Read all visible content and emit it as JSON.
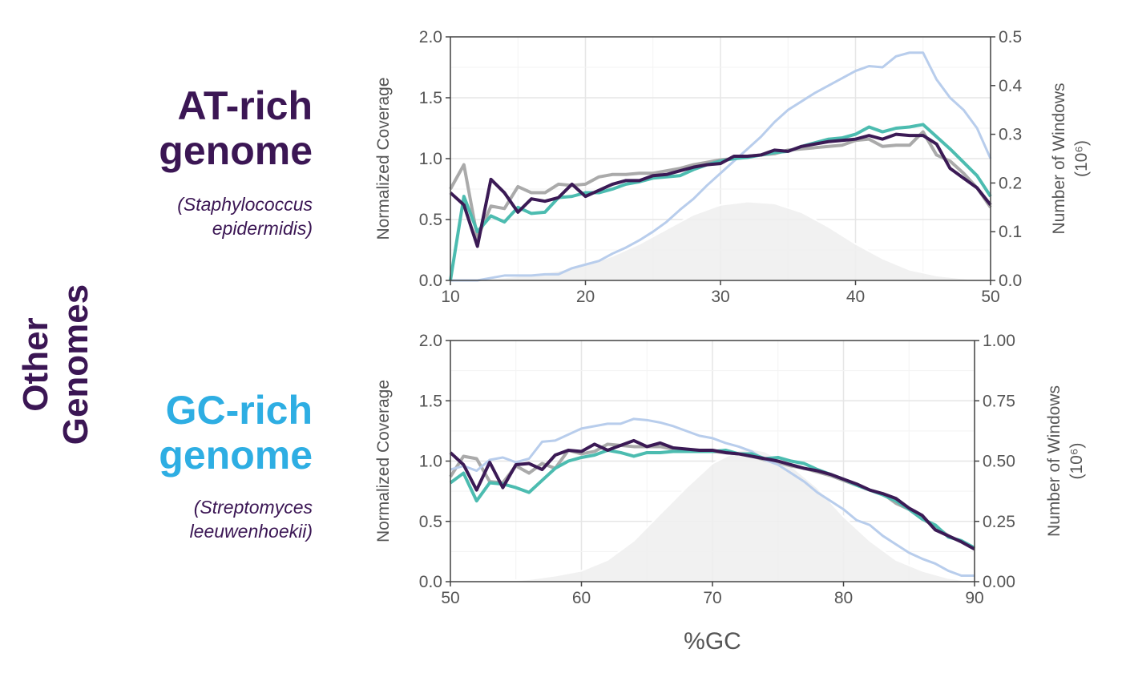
{
  "labels": {
    "side_title": "Other Genomes",
    "at_title_1": "AT-rich",
    "at_title_2": "genome",
    "at_species_1": "(Staphylococcus",
    "at_species_2": "epidermidis)",
    "gc_title_1": "GC-rich",
    "gc_title_2": "genome",
    "gc_species_1": "(Streptomyces",
    "gc_species_2": "leeuwenhoekii)",
    "at_color": "#3b1654",
    "gc_color": "#2eaee3"
  },
  "chart_data": [
    {
      "type": "line",
      "xlabel": "",
      "ylabel": "Normalized Coverage",
      "y2label": "Number of Windows",
      "y2label_unit": "(10⁶)",
      "xlim": [
        10,
        50
      ],
      "ylim": [
        0,
        2.0
      ],
      "y2lim": [
        0,
        0.5
      ],
      "xticks": [
        "10",
        "20",
        "30",
        "40",
        "50"
      ],
      "yticks": [
        "0.0",
        "0.5",
        "1.0",
        "1.5",
        "2.0"
      ],
      "y2ticks": [
        "0.0",
        "0.1",
        "0.2",
        "0.3",
        "0.4",
        "0.5"
      ],
      "grid": true,
      "x": [
        10,
        11,
        12,
        13,
        14,
        15,
        16,
        17,
        18,
        19,
        20,
        21,
        22,
        23,
        24,
        25,
        26,
        27,
        28,
        29,
        30,
        31,
        32,
        33,
        34,
        35,
        36,
        37,
        38,
        39,
        40,
        41,
        42,
        43,
        44,
        45,
        46,
        47,
        48,
        49,
        50
      ],
      "series": [
        {
          "color": "#aaaaaa",
          "values": [
            0.75,
            0.95,
            0.35,
            0.61,
            0.59,
            0.77,
            0.72,
            0.72,
            0.79,
            0.78,
            0.79,
            0.85,
            0.87,
            0.87,
            0.88,
            0.88,
            0.9,
            0.92,
            0.95,
            0.97,
            0.99,
            1.0,
            1.02,
            1.03,
            1.04,
            1.07,
            1.08,
            1.09,
            1.1,
            1.11,
            1.15,
            1.16,
            1.1,
            1.11,
            1.11,
            1.22,
            1.03,
            0.98,
            0.88,
            0.76,
            0.6
          ]
        },
        {
          "color": "#b8cdec",
          "values": [
            0,
            0,
            0,
            0.02,
            0.04,
            0.04,
            0.04,
            0.05,
            0.05,
            0.1,
            0.13,
            0.16,
            0.22,
            0.27,
            0.33,
            0.4,
            0.48,
            0.58,
            0.67,
            0.78,
            0.88,
            0.98,
            1.08,
            1.18,
            1.3,
            1.4,
            1.47,
            1.54,
            1.6,
            1.66,
            1.72,
            1.76,
            1.75,
            1.84,
            1.87,
            1.87,
            1.65,
            1.5,
            1.4,
            1.25,
            1.0
          ]
        },
        {
          "color": "#4cbcb0",
          "values": [
            0.0,
            0.69,
            0.4,
            0.53,
            0.48,
            0.6,
            0.55,
            0.56,
            0.68,
            0.69,
            0.72,
            0.72,
            0.75,
            0.79,
            0.81,
            0.84,
            0.85,
            0.86,
            0.91,
            0.95,
            0.98,
            1.0,
            1.01,
            1.03,
            1.05,
            1.06,
            1.1,
            1.13,
            1.16,
            1.17,
            1.2,
            1.26,
            1.22,
            1.25,
            1.26,
            1.28,
            1.18,
            1.08,
            0.97,
            0.86,
            0.69
          ]
        },
        {
          "color": "#3b1a55",
          "values": [
            0.72,
            0.62,
            0.28,
            0.83,
            0.72,
            0.56,
            0.67,
            0.65,
            0.68,
            0.79,
            0.69,
            0.74,
            0.79,
            0.82,
            0.82,
            0.86,
            0.87,
            0.9,
            0.93,
            0.95,
            0.96,
            1.02,
            1.02,
            1.03,
            1.07,
            1.06,
            1.1,
            1.12,
            1.14,
            1.15,
            1.16,
            1.19,
            1.16,
            1.2,
            1.19,
            1.19,
            1.12,
            0.92,
            0.84,
            0.76,
            0.62
          ]
        }
      ],
      "windows": {
        "color": "#efefef",
        "x": [
          10,
          12,
          14,
          16,
          18,
          20,
          22,
          24,
          26,
          28,
          30,
          32,
          34,
          36,
          38,
          40,
          42,
          44,
          46,
          48,
          50
        ],
        "values": [
          0,
          0.003,
          0.006,
          0.012,
          0.02,
          0.032,
          0.05,
          0.075,
          0.105,
          0.135,
          0.155,
          0.162,
          0.158,
          0.14,
          0.11,
          0.075,
          0.045,
          0.022,
          0.01,
          0.004,
          0
        ]
      }
    },
    {
      "type": "line",
      "xlabel": "%GC",
      "ylabel": "Normalized Coverage",
      "y2label": "Number of Windows",
      "y2label_unit": "(10⁶)",
      "xlim": [
        50,
        90
      ],
      "ylim": [
        0,
        2.0
      ],
      "y2lim": [
        0,
        1.0
      ],
      "xticks": [
        "50",
        "60",
        "70",
        "80",
        "90"
      ],
      "yticks": [
        "0.0",
        "0.5",
        "1.0",
        "1.5",
        "2.0"
      ],
      "y2ticks": [
        "0.00",
        "0.25",
        "0.50",
        "0.75",
        "1.00"
      ],
      "grid": true,
      "x": [
        50,
        51,
        52,
        53,
        54,
        55,
        56,
        57,
        58,
        59,
        60,
        61,
        62,
        63,
        64,
        65,
        66,
        67,
        68,
        69,
        70,
        71,
        72,
        73,
        74,
        75,
        76,
        77,
        78,
        79,
        80,
        81,
        82,
        83,
        84,
        85,
        86,
        87,
        88,
        89,
        90
      ],
      "series": [
        {
          "color": "#aaaaaa",
          "values": [
            0.87,
            1.04,
            1.02,
            0.83,
            0.82,
            0.96,
            0.9,
            0.98,
            0.94,
            1.09,
            1.06,
            1.08,
            1.14,
            1.13,
            1.12,
            1.12,
            1.12,
            1.1,
            1.09,
            1.08,
            1.08,
            1.07,
            1.06,
            1.04,
            1.01,
            0.99,
            0.96,
            0.94,
            0.91,
            0.88,
            0.84,
            0.8,
            0.76,
            0.73,
            0.65,
            0.6,
            0.52,
            0.46,
            0.38,
            0.33,
            0.28
          ]
        },
        {
          "color": "#b8cdec",
          "values": [
            0.93,
            0.96,
            0.92,
            1.01,
            1.03,
            0.99,
            1.02,
            1.16,
            1.17,
            1.22,
            1.27,
            1.29,
            1.31,
            1.31,
            1.35,
            1.34,
            1.32,
            1.29,
            1.25,
            1.21,
            1.19,
            1.15,
            1.12,
            1.08,
            1.01,
            0.97,
            0.9,
            0.83,
            0.74,
            0.67,
            0.6,
            0.51,
            0.47,
            0.38,
            0.31,
            0.24,
            0.19,
            0.15,
            0.09,
            0.05,
            0.05
          ]
        },
        {
          "color": "#4cbcb0",
          "values": [
            0.82,
            0.9,
            0.67,
            0.82,
            0.81,
            0.78,
            0.74,
            0.84,
            0.94,
            1.0,
            1.03,
            1.05,
            1.09,
            1.07,
            1.04,
            1.07,
            1.07,
            1.08,
            1.08,
            1.08,
            1.08,
            1.09,
            1.06,
            1.06,
            1.02,
            1.03,
            1.0,
            0.98,
            0.93,
            0.89,
            0.85,
            0.8,
            0.76,
            0.72,
            0.67,
            0.6,
            0.52,
            0.47,
            0.37,
            0.34,
            0.28
          ]
        },
        {
          "color": "#3b1a55",
          "values": [
            1.07,
            0.97,
            0.76,
            0.99,
            0.78,
            0.97,
            0.98,
            0.93,
            1.05,
            1.09,
            1.08,
            1.14,
            1.09,
            1.13,
            1.17,
            1.12,
            1.15,
            1.11,
            1.1,
            1.09,
            1.09,
            1.07,
            1.06,
            1.04,
            1.02,
            1.0,
            0.97,
            0.94,
            0.92,
            0.89,
            0.85,
            0.81,
            0.76,
            0.73,
            0.69,
            0.61,
            0.55,
            0.43,
            0.38,
            0.33,
            0.27
          ]
        }
      ],
      "windows": {
        "color": "#efefef",
        "x": [
          50,
          54,
          56,
          58,
          60,
          62,
          64,
          66,
          68,
          70,
          72,
          73,
          74,
          76,
          78,
          80,
          82,
          84,
          86,
          88,
          90
        ],
        "values": [
          0,
          0.003,
          0.01,
          0.025,
          0.045,
          0.09,
          0.17,
          0.28,
          0.39,
          0.49,
          0.545,
          0.55,
          0.54,
          0.48,
          0.39,
          0.27,
          0.17,
          0.09,
          0.045,
          0.015,
          0
        ]
      }
    }
  ]
}
